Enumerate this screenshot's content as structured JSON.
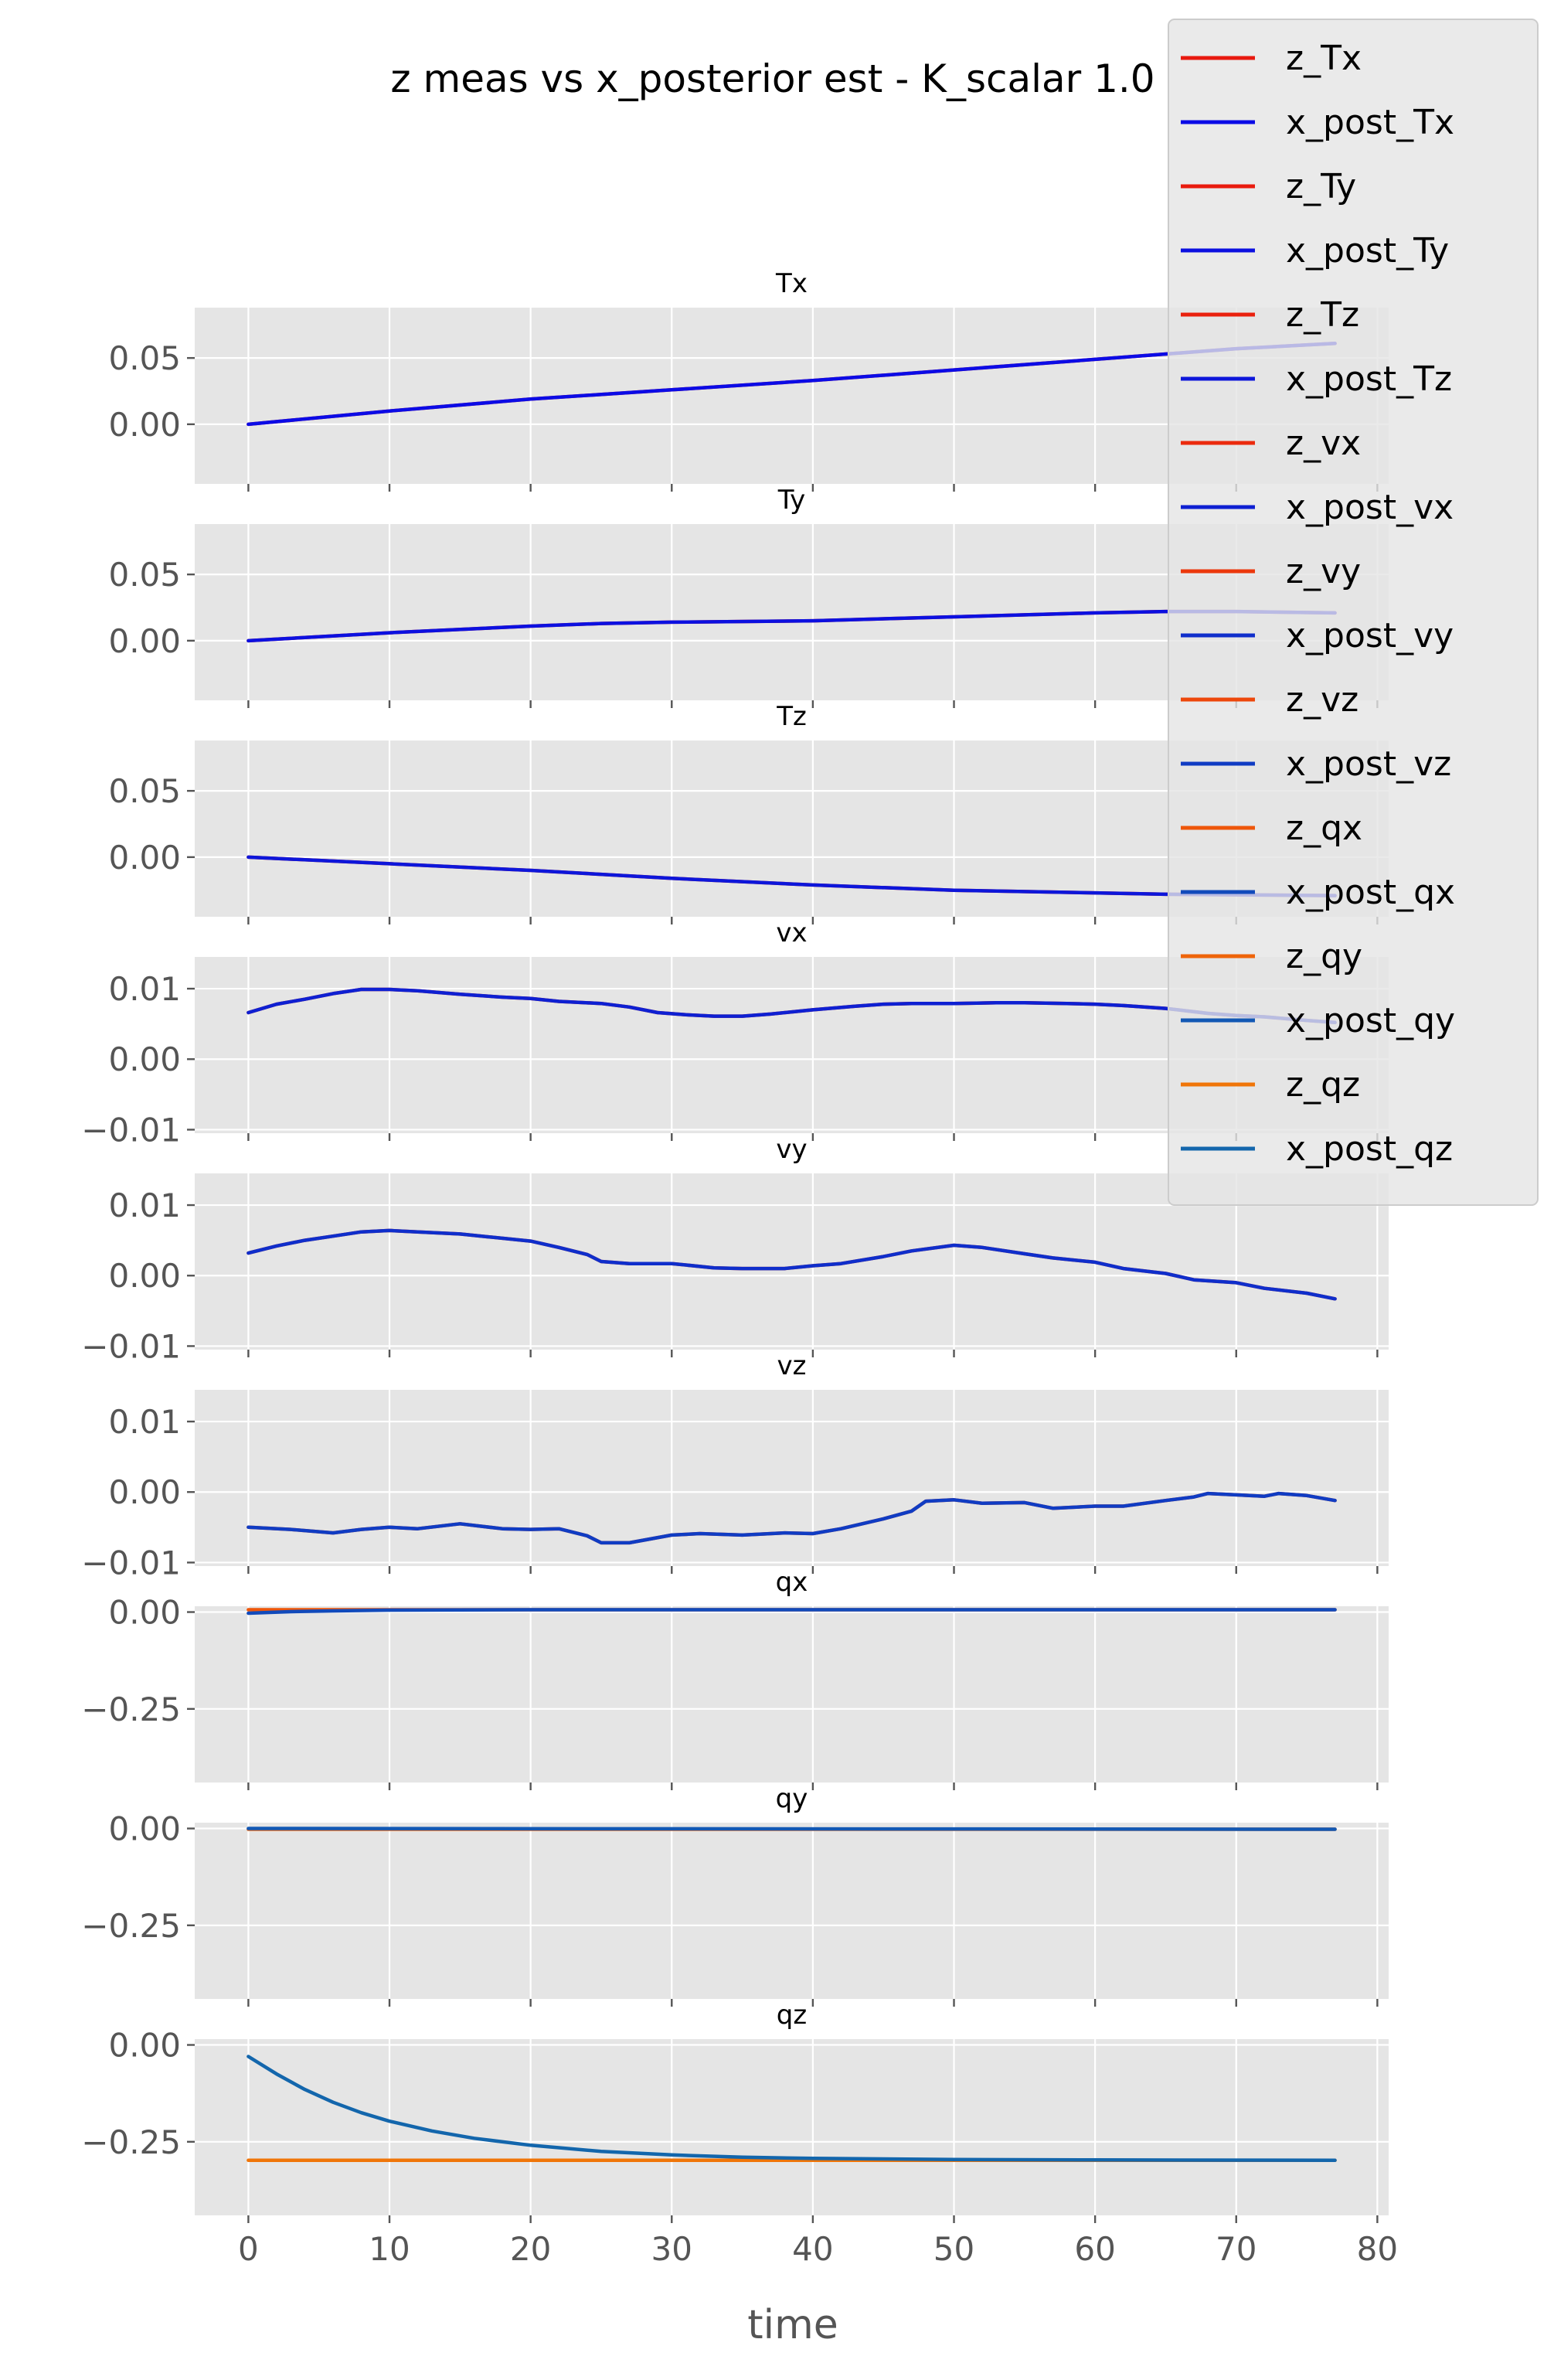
{
  "chart_data": {
    "type": "line",
    "title": "z meas vs x_posterior est - K_scalar 1.0",
    "xlabel": "time",
    "xlim": [
      -3.8,
      80.8
    ],
    "xticks": [
      0,
      10,
      20,
      30,
      40,
      50,
      60,
      70,
      80
    ],
    "grid": true,
    "legend_position": "top-right",
    "n_points": 78,
    "panels": [
      {
        "title": "Tx",
        "ylim": [
          -0.045,
          0.088
        ],
        "yticks": [
          0.0,
          0.05
        ],
        "ytick_labels": [
          "0.00",
          "0.05"
        ],
        "show_xtick_labels": false,
        "z": {
          "name": "z_Tx",
          "color": "#e8190f",
          "x": [
            0,
            10,
            20,
            30,
            40,
            50,
            60,
            70,
            77
          ],
          "y": [
            0.0,
            0.01,
            0.019,
            0.026,
            0.033,
            0.041,
            0.049,
            0.057,
            0.061
          ]
        },
        "x_post": {
          "name": "x_post_Tx",
          "color": "#0b0be6",
          "x": [
            0,
            10,
            20,
            30,
            40,
            50,
            60,
            70,
            77
          ],
          "y": [
            0.0,
            0.01,
            0.019,
            0.026,
            0.033,
            0.041,
            0.049,
            0.057,
            0.061
          ]
        }
      },
      {
        "title": "Ty",
        "ylim": [
          -0.045,
          0.088
        ],
        "yticks": [
          0.0,
          0.05
        ],
        "ytick_labels": [
          "0.00",
          "0.05"
        ],
        "show_xtick_labels": false,
        "z": {
          "name": "z_Ty",
          "color": "#e91b0e",
          "x": [
            0,
            10,
            20,
            25,
            30,
            40,
            50,
            60,
            65,
            70,
            77
          ],
          "y": [
            0.0,
            0.006,
            0.011,
            0.013,
            0.014,
            0.015,
            0.018,
            0.021,
            0.022,
            0.022,
            0.021
          ]
        },
        "x_post": {
          "name": "x_post_Ty",
          "color": "#0c10e0",
          "x": [
            0,
            10,
            20,
            25,
            30,
            40,
            50,
            60,
            65,
            70,
            77
          ],
          "y": [
            0.0,
            0.006,
            0.011,
            0.013,
            0.014,
            0.015,
            0.018,
            0.021,
            0.022,
            0.022,
            0.021
          ]
        }
      },
      {
        "title": "Tz",
        "ylim": [
          -0.045,
          0.088
        ],
        "yticks": [
          0.0,
          0.05
        ],
        "ytick_labels": [
          "0.00",
          "0.05"
        ],
        "show_xtick_labels": false,
        "z": {
          "name": "z_Tz",
          "color": "#ea210e",
          "x": [
            0,
            10,
            20,
            30,
            40,
            50,
            60,
            65,
            77
          ],
          "y": [
            0.0,
            -0.005,
            -0.01,
            -0.016,
            -0.021,
            -0.025,
            -0.027,
            -0.028,
            -0.029
          ]
        },
        "x_post": {
          "name": "x_post_Tz",
          "color": "#0d16da",
          "x": [
            0,
            10,
            20,
            30,
            40,
            50,
            60,
            65,
            77
          ],
          "y": [
            0.0,
            -0.005,
            -0.01,
            -0.016,
            -0.021,
            -0.025,
            -0.027,
            -0.028,
            -0.029
          ]
        }
      },
      {
        "title": "vx",
        "ylim": [
          -0.0105,
          0.0145
        ],
        "yticks": [
          -0.01,
          0.0,
          0.01
        ],
        "ytick_labels": [
          "−0.01",
          "0.00",
          "0.01"
        ],
        "show_xtick_labels": false,
        "z": {
          "name": "z_vx",
          "color": "#eb2a0d",
          "x": [
            0,
            2,
            4,
            6,
            8,
            10,
            12,
            15,
            18,
            20,
            22,
            25,
            27,
            29,
            31,
            33,
            35,
            37,
            40,
            43,
            45,
            47,
            50,
            53,
            55,
            58,
            60,
            62,
            65,
            68,
            70,
            72,
            75,
            77
          ],
          "y": [
            0.0066,
            0.0078,
            0.0085,
            0.0093,
            0.0099,
            0.0099,
            0.0097,
            0.0092,
            0.0088,
            0.0086,
            0.0082,
            0.0079,
            0.0074,
            0.0066,
            0.0063,
            0.0061,
            0.0061,
            0.0064,
            0.007,
            0.0075,
            0.0078,
            0.0079,
            0.0079,
            0.008,
            0.008,
            0.0079,
            0.0078,
            0.0076,
            0.0072,
            0.0065,
            0.0062,
            0.006,
            0.0055,
            0.0052
          ]
        },
        "x_post": {
          "name": "x_post_vx",
          "color": "#0e20d2",
          "x": [
            0,
            2,
            4,
            6,
            8,
            10,
            12,
            15,
            18,
            20,
            22,
            25,
            27,
            29,
            31,
            33,
            35,
            37,
            40,
            43,
            45,
            47,
            50,
            53,
            55,
            58,
            60,
            62,
            65,
            68,
            70,
            72,
            75,
            77
          ],
          "y": [
            0.0066,
            0.0078,
            0.0085,
            0.0093,
            0.0099,
            0.0099,
            0.0097,
            0.0092,
            0.0088,
            0.0086,
            0.0082,
            0.0079,
            0.0074,
            0.0066,
            0.0063,
            0.0061,
            0.0061,
            0.0064,
            0.007,
            0.0075,
            0.0078,
            0.0079,
            0.0079,
            0.008,
            0.008,
            0.0079,
            0.0078,
            0.0076,
            0.0072,
            0.0065,
            0.0062,
            0.006,
            0.0055,
            0.0052
          ]
        }
      },
      {
        "title": "vy",
        "ylim": [
          -0.0105,
          0.0145
        ],
        "yticks": [
          -0.01,
          0.0,
          0.01
        ],
        "ytick_labels": [
          "−0.01",
          "0.00",
          "0.01"
        ],
        "show_xtick_labels": false,
        "z": {
          "name": "z_vy",
          "color": "#ec380c",
          "x": [
            0,
            2,
            4,
            6,
            8,
            10,
            12,
            15,
            17,
            20,
            22,
            24,
            25,
            27,
            30,
            33,
            35,
            38,
            40,
            42,
            45,
            47,
            50,
            52,
            55,
            57,
            60,
            62,
            65,
            67,
            70,
            72,
            75,
            77
          ],
          "y": [
            0.0032,
            0.0042,
            0.005,
            0.0056,
            0.0062,
            0.0064,
            0.0062,
            0.0059,
            0.0055,
            0.0049,
            0.004,
            0.003,
            0.002,
            0.0017,
            0.0017,
            0.0011,
            0.001,
            0.001,
            0.0014,
            0.0017,
            0.0027,
            0.0035,
            0.0043,
            0.004,
            0.0031,
            0.0025,
            0.0019,
            0.001,
            0.0003,
            -0.0006,
            -0.001,
            -0.0018,
            -0.0025,
            -0.0033
          ]
        },
        "x_post": {
          "name": "x_post_vy",
          "color": "#0f2ecb",
          "x": [
            0,
            2,
            4,
            6,
            8,
            10,
            12,
            15,
            17,
            20,
            22,
            24,
            25,
            27,
            30,
            33,
            35,
            38,
            40,
            42,
            45,
            47,
            50,
            52,
            55,
            57,
            60,
            62,
            65,
            67,
            70,
            72,
            75,
            77
          ],
          "y": [
            0.0032,
            0.0042,
            0.005,
            0.0056,
            0.0062,
            0.0064,
            0.0062,
            0.0059,
            0.0055,
            0.0049,
            0.004,
            0.003,
            0.002,
            0.0017,
            0.0017,
            0.0011,
            0.001,
            0.001,
            0.0014,
            0.0017,
            0.0027,
            0.0035,
            0.0043,
            0.004,
            0.0031,
            0.0025,
            0.0019,
            0.001,
            0.0003,
            -0.0006,
            -0.001,
            -0.0018,
            -0.0025,
            -0.0033
          ]
        }
      },
      {
        "title": "vz",
        "ylim": [
          -0.0105,
          0.0145
        ],
        "yticks": [
          -0.01,
          0.0,
          0.01
        ],
        "ytick_labels": [
          "−0.01",
          "0.00",
          "0.01"
        ],
        "show_xtick_labels": false,
        "z": {
          "name": "z_vz",
          "color": "#ed470b",
          "x": [
            0,
            3,
            6,
            8,
            10,
            12,
            15,
            18,
            20,
            22,
            24,
            25,
            27,
            30,
            32,
            35,
            38,
            40,
            42,
            45,
            47,
            48,
            50,
            52,
            55,
            57,
            60,
            62,
            65,
            67,
            68,
            70,
            72,
            73,
            75,
            77
          ],
          "y": [
            -0.005,
            -0.0053,
            -0.0058,
            -0.0053,
            -0.005,
            -0.0052,
            -0.0045,
            -0.0052,
            -0.0053,
            -0.0052,
            -0.0062,
            -0.0072,
            -0.0072,
            -0.0061,
            -0.0059,
            -0.0061,
            -0.0058,
            -0.0059,
            -0.0052,
            -0.0038,
            -0.0027,
            -0.0013,
            -0.0011,
            -0.0016,
            -0.0015,
            -0.0023,
            -0.002,
            -0.002,
            -0.0012,
            -0.0007,
            -0.0002,
            -0.0004,
            -0.0006,
            -0.0002,
            -0.0005,
            -0.0012
          ]
        },
        "x_post": {
          "name": "x_post_vz",
          "color": "#103cc3",
          "x": [
            0,
            3,
            6,
            8,
            10,
            12,
            15,
            18,
            20,
            22,
            24,
            25,
            27,
            30,
            32,
            35,
            38,
            40,
            42,
            45,
            47,
            48,
            50,
            52,
            55,
            57,
            60,
            62,
            65,
            67,
            68,
            70,
            72,
            73,
            75,
            77
          ],
          "y": [
            -0.005,
            -0.0053,
            -0.0058,
            -0.0053,
            -0.005,
            -0.0052,
            -0.0045,
            -0.0052,
            -0.0053,
            -0.0052,
            -0.0062,
            -0.0072,
            -0.0072,
            -0.0061,
            -0.0059,
            -0.0061,
            -0.0058,
            -0.0059,
            -0.0052,
            -0.0038,
            -0.0027,
            -0.0013,
            -0.0011,
            -0.0016,
            -0.0015,
            -0.0023,
            -0.002,
            -0.002,
            -0.0012,
            -0.0007,
            -0.0002,
            -0.0004,
            -0.0006,
            -0.0002,
            -0.0005,
            -0.0012
          ]
        }
      },
      {
        "title": "qx",
        "ylim": [
          -0.44,
          0.015
        ],
        "yticks": [
          -0.25,
          0.0
        ],
        "ytick_labels": [
          "−0.25",
          "0.00"
        ],
        "show_xtick_labels": false,
        "z": {
          "name": "z_qx",
          "color": "#ee560a",
          "x": [
            0,
            77
          ],
          "y": [
            0.006,
            0.006
          ]
        },
        "x_post": {
          "name": "x_post_qx",
          "color": "#114abb",
          "x": [
            0,
            3,
            6,
            10,
            20,
            77
          ],
          "y": [
            -0.003,
            0.001,
            0.003,
            0.005,
            0.006,
            0.006
          ]
        }
      },
      {
        "title": "qy",
        "ylim": [
          -0.44,
          0.015
        ],
        "yticks": [
          -0.25,
          0.0
        ],
        "ytick_labels": [
          "−0.25",
          "0.00"
        ],
        "show_xtick_labels": false,
        "z": {
          "name": "z_qy",
          "color": "#ef6409",
          "x": [
            0,
            77
          ],
          "y": [
            -0.002,
            -0.002
          ]
        },
        "x_post": {
          "name": "x_post_qy",
          "color": "#1258b4",
          "x": [
            0,
            77
          ],
          "y": [
            0.0,
            -0.002
          ]
        }
      },
      {
        "title": "qz",
        "ylim": [
          -0.44,
          0.015
        ],
        "yticks": [
          -0.25,
          0.0
        ],
        "ytick_labels": [
          "−0.25",
          "0.00"
        ],
        "show_xtick_labels": true,
        "z": {
          "name": "z_qz",
          "color": "#f07508",
          "x": [
            0,
            77
          ],
          "y": [
            -0.298,
            -0.298
          ]
        },
        "x_post": {
          "name": "x_post_qz",
          "color": "#1366ac",
          "x": [
            0,
            2,
            4,
            6,
            8,
            10,
            13,
            16,
            20,
            25,
            30,
            35,
            40,
            50,
            60,
            77
          ],
          "y": [
            -0.03,
            -0.075,
            -0.115,
            -0.148,
            -0.175,
            -0.197,
            -0.222,
            -0.241,
            -0.259,
            -0.275,
            -0.284,
            -0.29,
            -0.293,
            -0.296,
            -0.297,
            -0.298
          ]
        }
      }
    ],
    "legend": [
      "z_Tx",
      "x_post_Tx",
      "z_Ty",
      "x_post_Ty",
      "z_Tz",
      "x_post_Tz",
      "z_vx",
      "x_post_vx",
      "z_vy",
      "x_post_vy",
      "z_vz",
      "x_post_vz",
      "z_qx",
      "x_post_qx",
      "z_qy",
      "x_post_qy",
      "z_qz",
      "x_post_qz"
    ]
  }
}
